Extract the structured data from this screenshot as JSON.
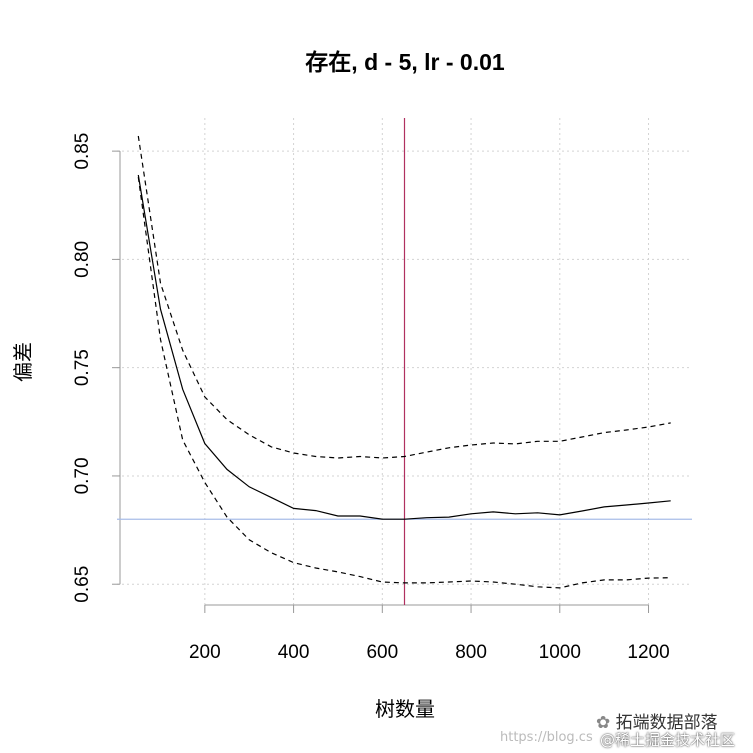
{
  "chart_data": {
    "type": "line",
    "title": "存在, d - 5, lr - 0.01",
    "xlabel": "树数量",
    "ylabel": "偏差",
    "xlim": [
      2,
      1298
    ],
    "ylim": [
      0.6404,
      0.8653
    ],
    "xticks": [
      200,
      400,
      600,
      800,
      1000,
      1200
    ],
    "yticks": [
      0.65,
      0.7,
      0.75,
      0.8,
      0.85
    ],
    "ytick_labels": [
      "0.65",
      "0.70",
      "0.75",
      "0.80",
      "0.85"
    ],
    "grid": true,
    "x": [
      50,
      100,
      150,
      200,
      250,
      300,
      350,
      400,
      450,
      500,
      550,
      600,
      650,
      700,
      750,
      800,
      850,
      900,
      950,
      1000,
      1050,
      1100,
      1150,
      1200,
      1250
    ],
    "series": [
      {
        "style": "solid",
        "color": "#000000",
        "values": [
          0.839,
          0.777,
          0.74,
          0.715,
          0.703,
          0.695,
          0.69,
          0.685,
          0.684,
          0.6815,
          0.6815,
          0.68,
          0.68,
          0.6807,
          0.681,
          0.6825,
          0.6834,
          0.6825,
          0.683,
          0.682,
          0.6838,
          0.6857,
          0.6866,
          0.6875,
          0.6885
        ]
      },
      {
        "style": "dashed",
        "color": "#000000",
        "values": [
          0.857,
          0.789,
          0.758,
          0.7365,
          0.726,
          0.719,
          0.7134,
          0.7106,
          0.709,
          0.7083,
          0.709,
          0.7083,
          0.709,
          0.711,
          0.713,
          0.7143,
          0.7152,
          0.7148,
          0.716,
          0.716,
          0.718,
          0.72,
          0.7212,
          0.7226,
          0.7245
        ]
      },
      {
        "style": "dashed",
        "color": "#000000",
        "values": [
          0.838,
          0.763,
          0.7166,
          0.697,
          0.681,
          0.6705,
          0.6645,
          0.66,
          0.6575,
          0.6557,
          0.6535,
          0.651,
          0.6506,
          0.6506,
          0.651,
          0.6515,
          0.651,
          0.65,
          0.6488,
          0.6483,
          0.6506,
          0.652,
          0.652,
          0.6528,
          0.653
        ]
      }
    ],
    "vline": {
      "x": 650,
      "color": "#b03060"
    },
    "hline": {
      "y": 0.68,
      "color": "#a8bde8"
    }
  },
  "watermark": {
    "brand": "拓端数据部落",
    "url": "https://blog.cs",
    "community": "@稀土掘金技术社区"
  }
}
